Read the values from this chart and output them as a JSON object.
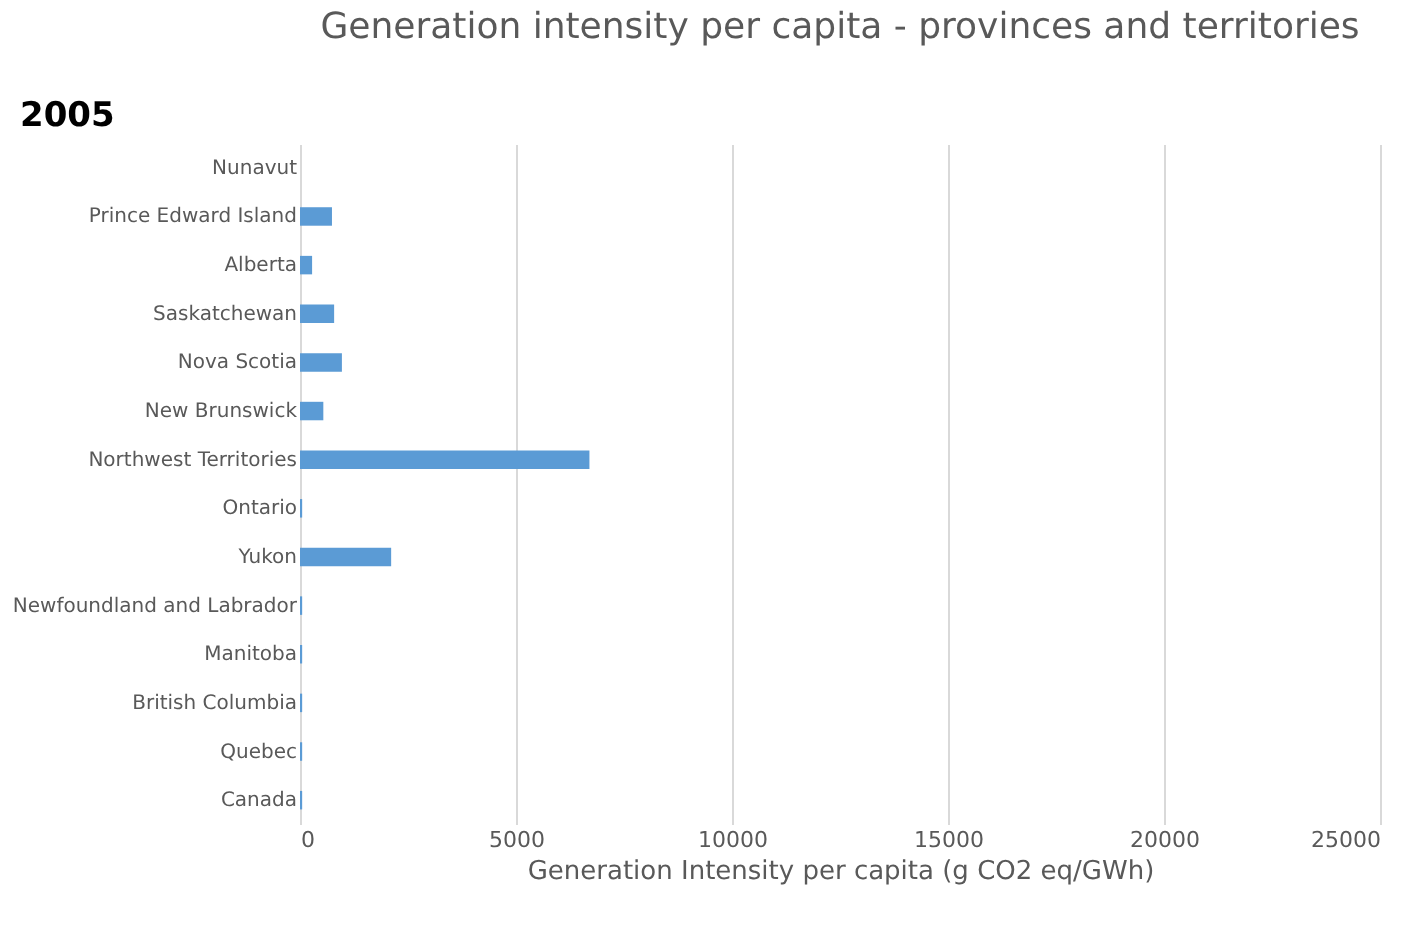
{
  "chart_data": {
    "type": "bar",
    "orientation": "horizontal",
    "title": "Generation intensity per capita - provinces and territories",
    "annotations": [
      "2005"
    ],
    "xlabel": "Generation Intensity per capita (g CO2 eq/GWh)",
    "categories": [
      "Nunavut",
      "Prince Edward Island",
      "Alberta",
      "Saskatchewan",
      "Nova Scotia",
      "New Brunswick",
      "Northwest Territories",
      "Ontario",
      "Yukon",
      "Newfoundland and Labrador",
      "Manitoba",
      "British Columbia",
      "Quebec",
      "Canada"
    ],
    "values": [
      0,
      740,
      280,
      790,
      970,
      540,
      6700,
      50,
      2110,
      50,
      50,
      50,
      50,
      50
    ],
    "color": "#5b9bd5",
    "xlim": [
      0,
      25000
    ],
    "xticks": [
      0,
      5000,
      10000,
      15000,
      20000,
      25000
    ],
    "grid": "x"
  }
}
